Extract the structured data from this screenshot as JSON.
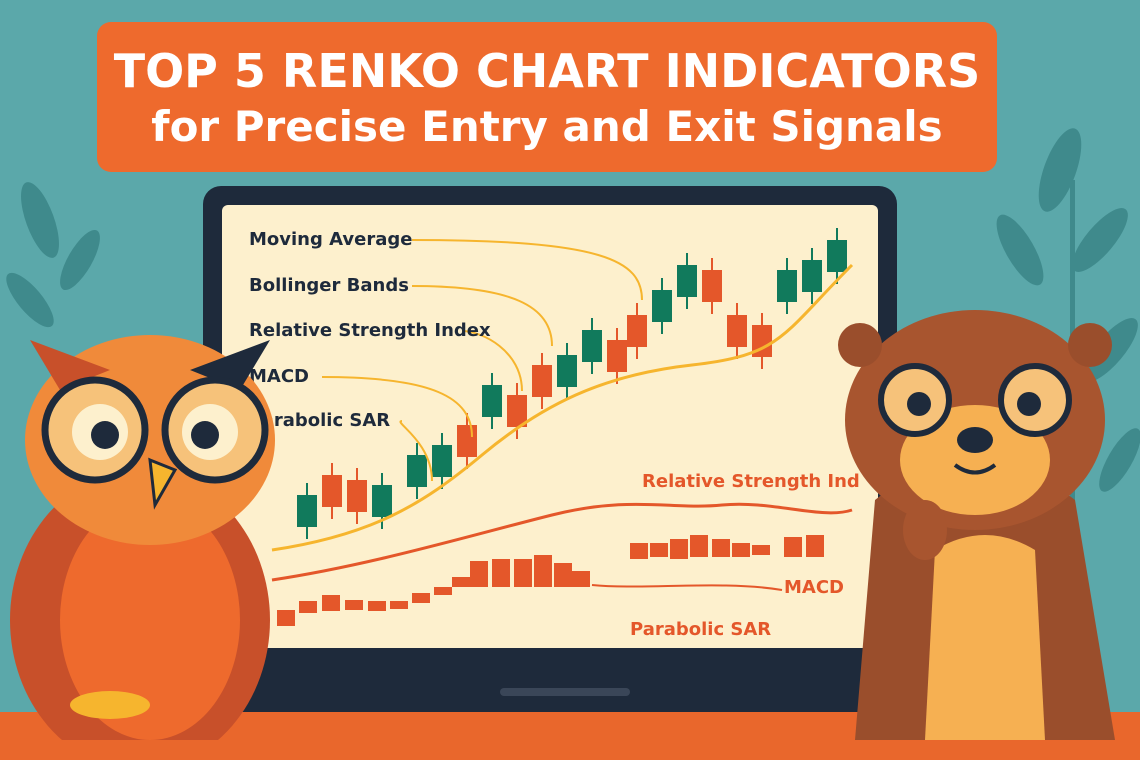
{
  "banner": {
    "title": "TOP 5 RENKO CHART INDICATORS",
    "subtitle": "for Precise Entry and Exit Signals"
  },
  "screen": {
    "labels": [
      "Moving Average",
      "Bollinger Bands",
      "Relative Strength Index",
      "MACD",
      "Parabolic SAR"
    ],
    "rsi_label": "Relative Strength Ind",
    "macd_label": "MACD",
    "psar_label": "Parabolic SAR"
  },
  "colors": {
    "background": "#5ba8aa",
    "banner": "#ee6a2d",
    "bull": "#117a5c",
    "bear": "#e4572a",
    "line": "#f6b52e",
    "screen": "#fdf0cd",
    "laptop": "#1e2a3b"
  },
  "characters": [
    "owl",
    "otter"
  ]
}
